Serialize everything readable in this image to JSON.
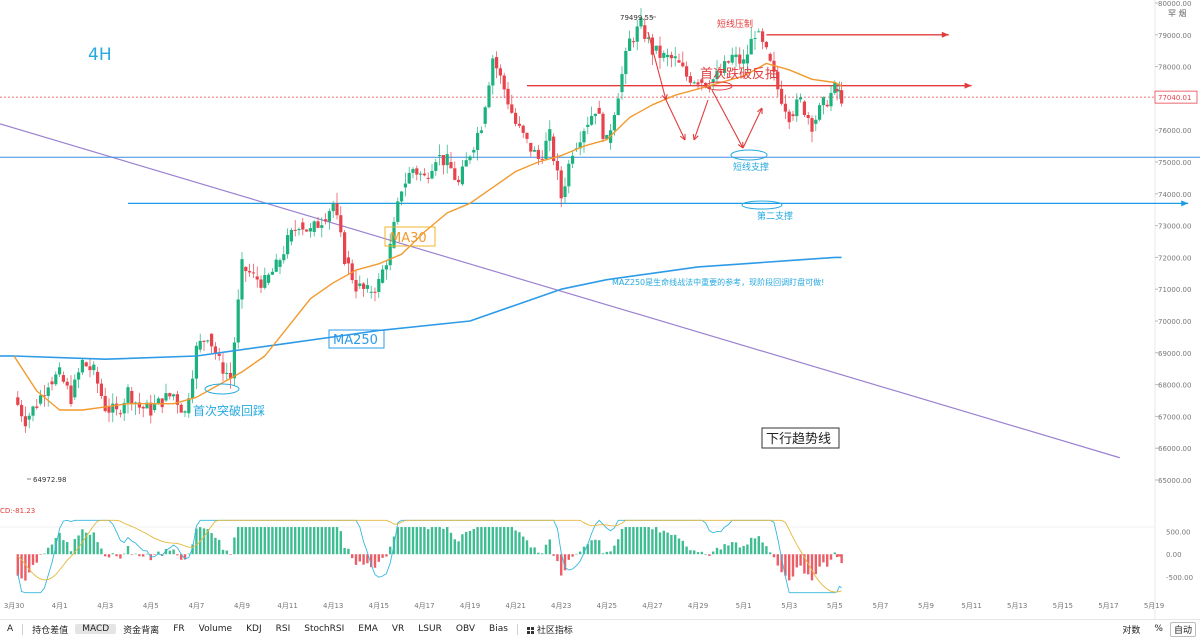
{
  "chart_data": {
    "type": "candlestick",
    "timeframe_label": "4H",
    "price_axis": {
      "ticks": [
        "80000.00",
        "79000.00",
        "78000.00",
        "77000.00",
        "76000.00",
        "75000.00",
        "74000.00",
        "73000.00",
        "72000.00",
        "71000.00",
        "70000.00",
        "69000.00",
        "68000.00",
        "67000.00",
        "66000.00",
        "65000.00"
      ],
      "range": [
        64500,
        80000
      ]
    },
    "time_axis": {
      "ticks": [
        "3月30",
        "4月1",
        "4月3",
        "4月5",
        "4月7",
        "4月9",
        "4月11",
        "4月13",
        "4月15",
        "4月17",
        "4月19",
        "4月21",
        "4月23",
        "4月25",
        "4月27",
        "4月29",
        "5月1",
        "5月3",
        "5月5",
        "5月7",
        "5月9",
        "5月11",
        "5月13",
        "5月15",
        "5月17",
        "5月19"
      ],
      "range_days": [
        "3月29",
        "5月20"
      ]
    },
    "current_price": "77040.01",
    "high_label": "79499.55",
    "low_label": "64972.98",
    "candles_close_path": [
      [
        0.0,
        67600
      ],
      [
        0.5,
        66900
      ],
      [
        1.0,
        67400
      ],
      [
        1.5,
        68100
      ],
      [
        2.0,
        68300
      ],
      [
        2.5,
        67600
      ],
      [
        3.0,
        68700
      ],
      [
        3.5,
        68400
      ],
      [
        4.0,
        67300
      ],
      [
        4.5,
        67100
      ],
      [
        5.0,
        67800
      ],
      [
        5.5,
        67300
      ],
      [
        6.0,
        67200
      ],
      [
        6.5,
        67500
      ],
      [
        7.0,
        67700
      ],
      [
        7.5,
        67100
      ],
      [
        8.0,
        69100
      ],
      [
        8.5,
        69600
      ],
      [
        9.0,
        68700
      ],
      [
        9.5,
        68200
      ],
      [
        10.0,
        71700
      ],
      [
        10.5,
        71400
      ],
      [
        11.0,
        71200
      ],
      [
        11.5,
        71700
      ],
      [
        12.0,
        72500
      ],
      [
        12.5,
        73100
      ],
      [
        13.0,
        72800
      ],
      [
        13.5,
        73200
      ],
      [
        14.0,
        73700
      ],
      [
        14.5,
        72000
      ],
      [
        15.0,
        71100
      ],
      [
        15.5,
        70900
      ],
      [
        16.0,
        71200
      ],
      [
        16.5,
        72300
      ],
      [
        17.0,
        74200
      ],
      [
        17.5,
        74800
      ],
      [
        18.0,
        74500
      ],
      [
        18.5,
        75200
      ],
      [
        19.0,
        75000
      ],
      [
        19.5,
        74300
      ],
      [
        20.0,
        75300
      ],
      [
        20.5,
        76200
      ],
      [
        21.0,
        78300
      ],
      [
        21.5,
        77300
      ],
      [
        22.0,
        76200
      ],
      [
        22.5,
        75600
      ],
      [
        23.0,
        75100
      ],
      [
        23.5,
        75800
      ],
      [
        24.0,
        73900
      ],
      [
        24.5,
        75400
      ],
      [
        25.0,
        76100
      ],
      [
        25.5,
        76700
      ],
      [
        26.0,
        75600
      ],
      [
        26.5,
        77200
      ],
      [
        27.0,
        78800
      ],
      [
        27.5,
        79300
      ],
      [
        28.0,
        78500
      ],
      [
        28.5,
        78300
      ],
      [
        29.0,
        78200
      ],
      [
        29.5,
        77700
      ],
      [
        30.0,
        77600
      ],
      [
        30.5,
        77500
      ],
      [
        31.0,
        77800
      ],
      [
        31.5,
        78300
      ],
      [
        32.0,
        78100
      ],
      [
        32.5,
        79100
      ],
      [
        33.0,
        78400
      ],
      [
        33.5,
        77300
      ],
      [
        34.0,
        76500
      ],
      [
        34.5,
        76900
      ],
      [
        35.0,
        76200
      ],
      [
        35.5,
        76800
      ],
      [
        36.0,
        77300
      ],
      [
        36.3,
        77040
      ]
    ],
    "ma30_path": [
      [
        0.0,
        68900
      ],
      [
        1.0,
        67800
      ],
      [
        2.0,
        67200
      ],
      [
        3.0,
        67200
      ],
      [
        4.0,
        67300
      ],
      [
        5.0,
        67400
      ],
      [
        6.0,
        67400
      ],
      [
        7.0,
        67400
      ],
      [
        8.0,
        67600
      ],
      [
        9.0,
        68000
      ],
      [
        10.0,
        68400
      ],
      [
        11.0,
        68900
      ],
      [
        12.0,
        69800
      ],
      [
        13.0,
        70700
      ],
      [
        14.0,
        71200
      ],
      [
        15.0,
        71600
      ],
      [
        16.0,
        71800
      ],
      [
        17.0,
        72100
      ],
      [
        18.0,
        72800
      ],
      [
        19.0,
        73400
      ],
      [
        20.0,
        73700
      ],
      [
        21.0,
        74200
      ],
      [
        22.0,
        74700
      ],
      [
        23.0,
        75000
      ],
      [
        24.0,
        75200
      ],
      [
        25.0,
        75500
      ],
      [
        26.0,
        75700
      ],
      [
        27.0,
        76400
      ],
      [
        28.0,
        76800
      ],
      [
        29.0,
        77100
      ],
      [
        30.0,
        77300
      ],
      [
        31.0,
        77500
      ],
      [
        32.0,
        77700
      ],
      [
        33.0,
        78100
      ],
      [
        34.0,
        77900
      ],
      [
        35.0,
        77600
      ],
      [
        36.0,
        77500
      ],
      [
        36.3,
        77400
      ]
    ],
    "ma250_path": [
      [
        0.0,
        68900
      ],
      [
        4.0,
        68800
      ],
      [
        8.0,
        68900
      ],
      [
        12.0,
        69300
      ],
      [
        16.0,
        69700
      ],
      [
        20.0,
        70000
      ],
      [
        22.0,
        70500
      ],
      [
        24.0,
        71000
      ],
      [
        26.0,
        71300
      ],
      [
        28.0,
        71500
      ],
      [
        30.0,
        71700
      ],
      [
        32.0,
        71800
      ],
      [
        34.0,
        71900
      ],
      [
        36.0,
        72000
      ],
      [
        36.3,
        72000
      ]
    ],
    "levels": [
      {
        "name": "short-pressure",
        "price": 79000,
        "x_days": [
          33.0,
          41.0
        ],
        "color": "#e23b3b",
        "label": "短线压制"
      },
      {
        "name": "first-breakdown",
        "price": 77400,
        "x_days": [
          22.5,
          42.0
        ],
        "color": "#e23b3b",
        "label": "首次跌破反抽"
      },
      {
        "name": "short-support",
        "price": 75150,
        "x_days": [
          0,
          59.5
        ],
        "color": "#3d8fe0",
        "label": "短线支撑"
      },
      {
        "name": "second-support",
        "price": 73700,
        "x_days": [
          5.0,
          51.5
        ],
        "color": "#1e9be8",
        "label": "第二支撑"
      }
    ],
    "trendline": {
      "from": [
        0.0,
        76200
      ],
      "to": [
        48.5,
        65700
      ],
      "color": "#9b82d1",
      "label": "下行趋势线"
    },
    "annotations": {
      "ma30_label": "MA30",
      "ma250_label": "MA250",
      "ma250_note": "MAZ250是生命线战法中重要的参考，现阶段回调盯盘可做!",
      "first_breakout_pullback": "首次突破回踩"
    },
    "macd": {
      "label": "CD:-81.23",
      "ticks": [
        "500.00",
        "0.00",
        "-500.00"
      ],
      "range": [
        -900,
        800
      ]
    },
    "colors": {
      "up": "#1bb27e",
      "down": "#e8424d",
      "ma30": "#f29a2e",
      "ma250": "#2e9be8",
      "current_price": "#e8424d",
      "label_cyan": "#26a9e0"
    }
  },
  "toolbar": {
    "left_cut": "A",
    "items": [
      "持仓差值",
      "MACD",
      "资金背离",
      "FR",
      "Volume",
      "KDJ",
      "RSI",
      "StochRSI",
      "EMA",
      "VR",
      "LSUR",
      "OBV",
      "Bias"
    ],
    "indicator_menu": "社区指标",
    "right": [
      "对数",
      "%",
      "自动"
    ]
  },
  "axis_corner": "罕 烟"
}
